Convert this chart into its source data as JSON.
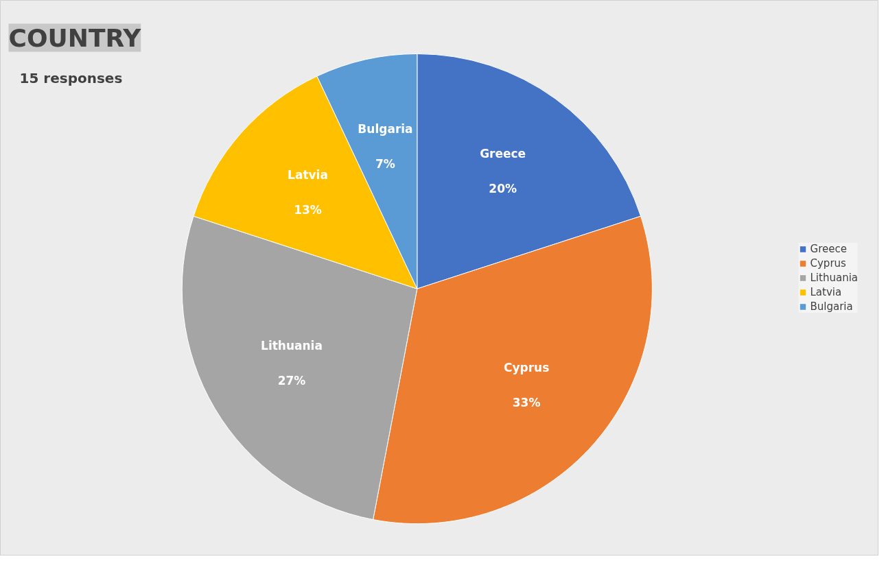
{
  "chart_data": {
    "type": "pie",
    "title": "COUNTRY",
    "subtitle": "15 responses",
    "categories": [
      "Greece",
      "Cyprus",
      "Lithuania",
      "Latvia",
      "Bulgaria"
    ],
    "values": [
      20,
      33,
      27,
      13,
      7
    ],
    "value_labels": [
      "20%",
      "33%",
      "27%",
      "13%",
      "7%"
    ],
    "colors": [
      "#4472c4",
      "#ed7d31",
      "#a5a5a5",
      "#ffc000",
      "#5b9bd5"
    ],
    "legend": "right"
  }
}
